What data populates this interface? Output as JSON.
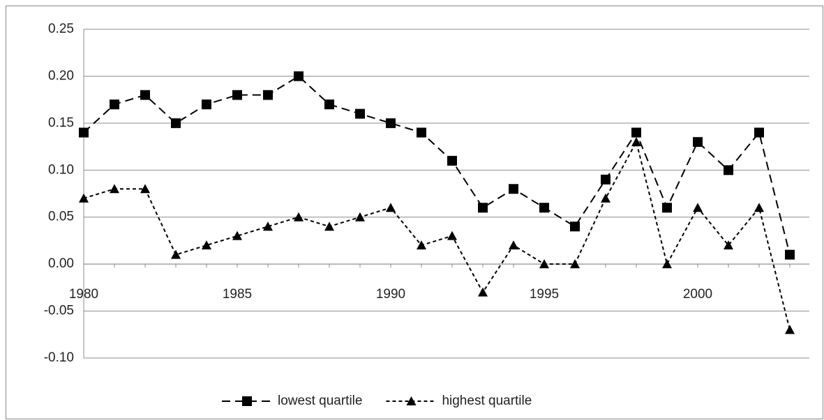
{
  "chart_data": {
    "type": "line",
    "categories": [
      1980,
      null,
      null,
      null,
      null,
      1985,
      null,
      null,
      null,
      null,
      1990,
      null,
      null,
      null,
      null,
      1995,
      null,
      null,
      null,
      null,
      2000,
      null,
      null,
      null
    ],
    "series": [
      {
        "name": "lowest quartile",
        "color": "#000000",
        "marker": "square",
        "values": [
          0.14,
          0.17,
          0.18,
          0.15,
          0.17,
          0.18,
          0.18,
          0.2,
          0.17,
          0.16,
          0.15,
          0.14,
          0.11,
          0.06,
          0.08,
          0.06,
          0.04,
          0.09,
          0.14,
          0.06,
          0.13,
          0.1,
          0.14,
          0.01
        ]
      },
      {
        "name": "highest quartile",
        "color": "#000000",
        "marker": "triangle",
        "values": [
          0.07,
          0.08,
          0.08,
          0.01,
          0.02,
          0.03,
          0.04,
          0.05,
          0.04,
          0.05,
          0.06,
          0.02,
          0.03,
          -0.03,
          0.02,
          0.0,
          0.0,
          0.07,
          0.13,
          0.0,
          0.06,
          0.02,
          0.06,
          -0.07
        ]
      }
    ],
    "ylim": [
      -0.1,
      0.25
    ],
    "yticks": [
      {
        "value": -0.1,
        "label": "-0.10"
      },
      {
        "value": -0.05,
        "label": "-0.05"
      },
      {
        "value": 0,
        "label": "0.00"
      },
      {
        "value": 0.05,
        "label": "0.05"
      },
      {
        "value": 0.1,
        "label": "0.10"
      },
      {
        "value": 0.15,
        "label": "0.15"
      },
      {
        "value": 0.2,
        "label": "0.20"
      },
      {
        "value": 0.25,
        "label": "0.25"
      }
    ],
    "grid": true,
    "legend": "bottom"
  }
}
